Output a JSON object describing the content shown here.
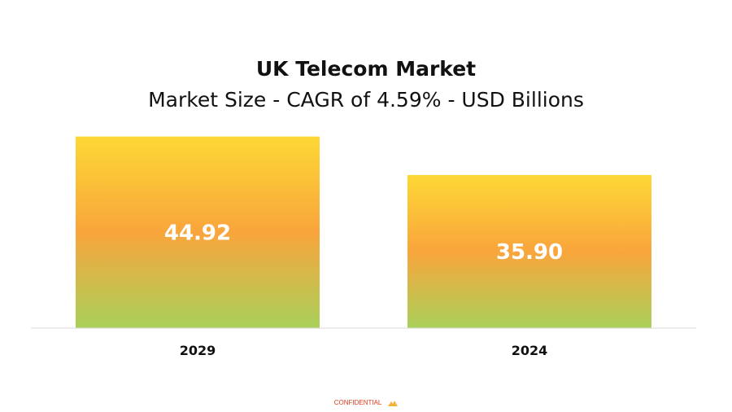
{
  "chart_data": {
    "type": "bar",
    "title": "UK Telecom Market",
    "subtitle": "Market Size - CAGR of 4.59% - USD Billions",
    "categories": [
      "2029",
      "2024"
    ],
    "values": [
      44.92,
      35.9
    ],
    "value_labels": [
      "44.92",
      "35.90"
    ],
    "xlabel": "",
    "ylabel": "",
    "ylim": [
      0,
      46
    ],
    "grid": false,
    "legend": "none",
    "colors": {
      "gradient_top": "#fdd835",
      "gradient_mid": "#f9a53c",
      "gradient_bottom": "#a9d05a",
      "baseline": "#d9d9d9"
    }
  },
  "footer": {
    "text": "CONFIDENTIAL",
    "logo_icon": "mordor-logo-icon",
    "color": "#e03a1e"
  }
}
